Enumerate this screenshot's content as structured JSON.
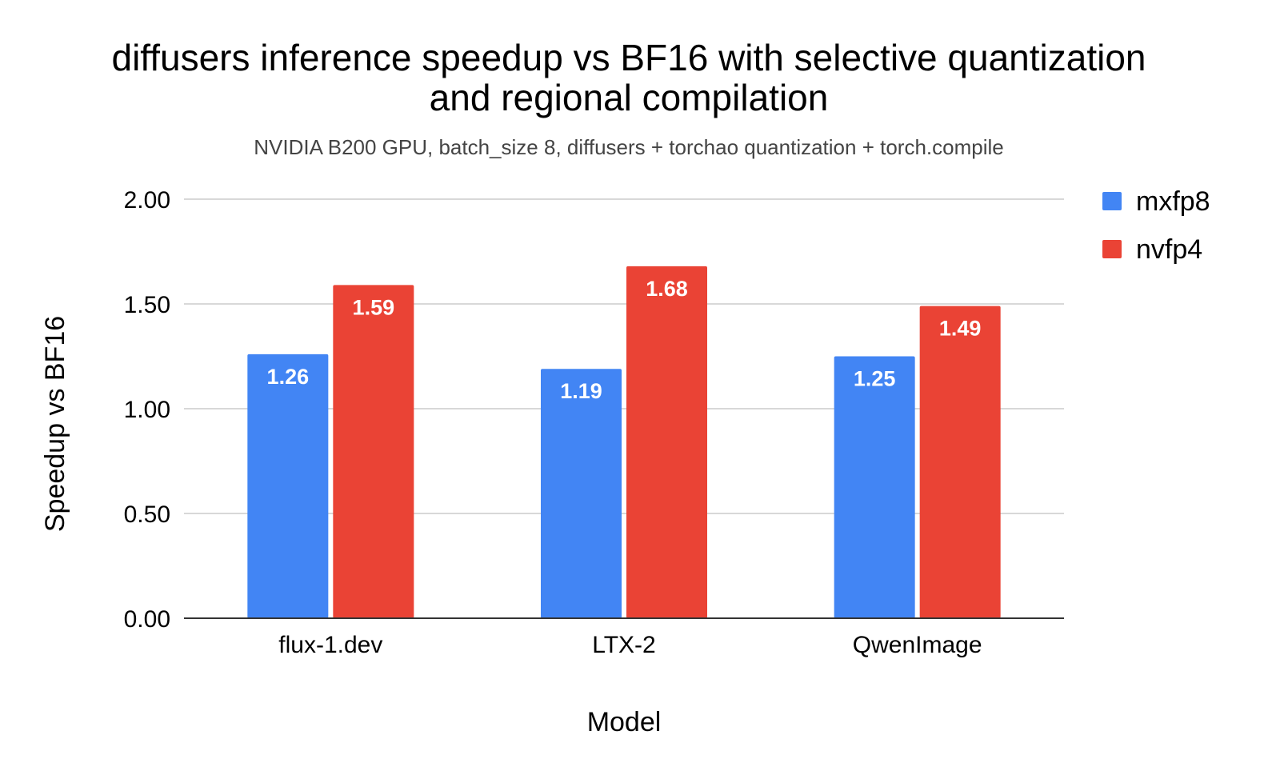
{
  "chart_data": {
    "type": "bar",
    "title_lines": [
      "diffusers inference speedup vs BF16 with selective quantization",
      "and regional compilation"
    ],
    "subtitle": "NVIDIA B200 GPU, batch_size 8, diffusers + torchao quantization + torch.compile",
    "xlabel": "Model",
    "ylabel": "Speedup vs BF16",
    "categories": [
      "flux-1.dev",
      "LTX-2",
      "QwenImage"
    ],
    "series": [
      {
        "name": "mxfp8",
        "color": "#4285F4",
        "values": [
          1.26,
          1.19,
          1.25
        ],
        "labels": [
          "1.26",
          "1.19",
          "1.25"
        ]
      },
      {
        "name": "nvfp4",
        "color": "#EA4335",
        "values": [
          1.59,
          1.68,
          1.49
        ],
        "labels": [
          "1.59",
          "1.68",
          "1.49"
        ]
      }
    ],
    "ylim": [
      0,
      2
    ],
    "yticks": [
      "0.00",
      "0.50",
      "1.00",
      "1.50",
      "2.00"
    ],
    "ytick_values": [
      0,
      0.5,
      1,
      1.5,
      2
    ],
    "grid": true,
    "legend": "right"
  }
}
